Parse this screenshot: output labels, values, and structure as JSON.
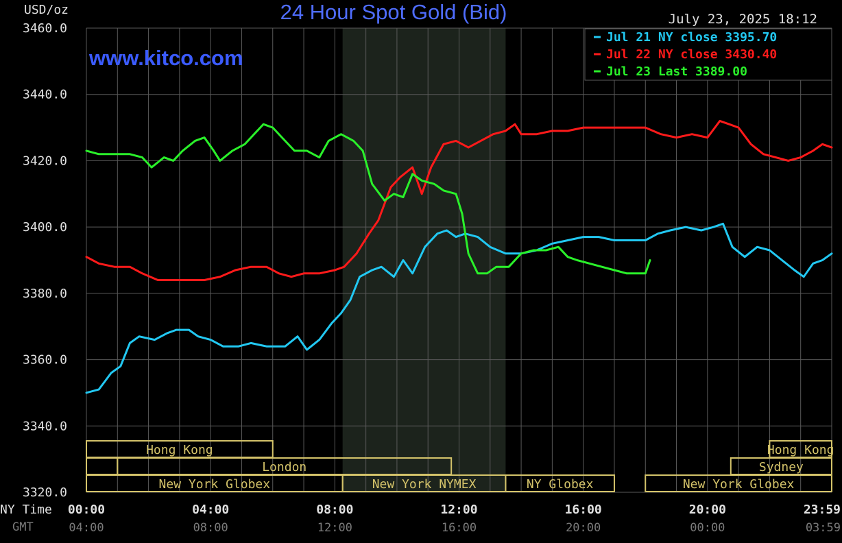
{
  "title": "24 Hour Spot Gold (Bid)",
  "unit_label": "USD/oz",
  "timestamp": "July 23, 2025 18:12",
  "watermark": "www.kitco.com",
  "axis_row_labels": {
    "ny": "NY Time",
    "gmt": "GMT"
  },
  "colors": {
    "background": "#000000",
    "grid": "#5a5a5a",
    "title": "#4f6dff",
    "shaded_band": "#1c231c",
    "session_box": "#d4c36a",
    "jul21": "#22c8f2",
    "jul22": "#ff1a1a",
    "jul23": "#2af02a",
    "axis_text": "#e0e0e0",
    "gmt_text": "#7a7a7a"
  },
  "legend": [
    {
      "text": "Jul 21 NY close 3395.70",
      "series": "jul21"
    },
    {
      "text": "Jul 22 NY close 3430.40",
      "series": "jul22"
    },
    {
      "text": "Jul 23 Last 3389.00",
      "series": "jul23"
    }
  ],
  "sessions": [
    {
      "label": "Hong Kong",
      "row": 0,
      "start": 0,
      "end": 6
    },
    {
      "label": "Hong Kong",
      "row": 0,
      "start": 22,
      "end": 24
    },
    {
      "label": "London",
      "row": 1,
      "start": 1,
      "end": 11.75
    },
    {
      "label": "Sydney",
      "row": 1,
      "start": 20.75,
      "end": 24
    },
    {
      "label": "",
      "row": 1,
      "start": 0,
      "end": 1
    },
    {
      "label": "New York Globex",
      "row": 2,
      "start": 0,
      "end": 8.25
    },
    {
      "label": "New York NYMEX",
      "row": 2,
      "start": 8.25,
      "end": 13.5
    },
    {
      "label": "NY Globex",
      "row": 2,
      "start": 13.5,
      "end": 17
    },
    {
      "label": "New York Globex",
      "row": 2,
      "start": 18,
      "end": 24
    }
  ],
  "chart_data": {
    "type": "line",
    "title": "24 Hour Spot Gold (Bid)",
    "ylabel": "USD/oz",
    "ylim": [
      3320,
      3460
    ],
    "yticks": [
      "3460.0",
      "3440.0",
      "3420.0",
      "3400.0",
      "3380.0",
      "3360.0",
      "3340.0",
      "3320.0"
    ],
    "yticks_values": [
      3460,
      3440,
      3420,
      3400,
      3380,
      3360,
      3340,
      3320
    ],
    "xlim_hours": [
      0,
      24
    ],
    "xticks_ny": [
      "00:00",
      "04:00",
      "08:00",
      "12:00",
      "16:00",
      "20:00",
      "23:59"
    ],
    "xticks_gmt": [
      "04:00",
      "08:00",
      "12:00",
      "16:00",
      "20:00",
      "00:00",
      "03:59"
    ],
    "xticks_hours": [
      0,
      4,
      8,
      12,
      16,
      20,
      24
    ],
    "grid": true,
    "legend_position": "top-right",
    "shaded_hours": [
      8.25,
      13.5
    ],
    "series": [
      {
        "name": "Jul 21 NY close 3395.70",
        "key": "jul21",
        "points": [
          [
            0,
            3350
          ],
          [
            0.4,
            3351
          ],
          [
            0.8,
            3356
          ],
          [
            1.1,
            3358
          ],
          [
            1.4,
            3365
          ],
          [
            1.7,
            3367
          ],
          [
            2.2,
            3366
          ],
          [
            2.6,
            3368
          ],
          [
            2.9,
            3369
          ],
          [
            3.3,
            3369
          ],
          [
            3.6,
            3367
          ],
          [
            4.0,
            3366
          ],
          [
            4.4,
            3364
          ],
          [
            4.9,
            3364
          ],
          [
            5.3,
            3365
          ],
          [
            5.8,
            3364
          ],
          [
            6.1,
            3364
          ],
          [
            6.4,
            3364
          ],
          [
            6.8,
            3367
          ],
          [
            7.1,
            3363
          ],
          [
            7.5,
            3366
          ],
          [
            7.9,
            3371
          ],
          [
            8.2,
            3374
          ],
          [
            8.5,
            3378
          ],
          [
            8.8,
            3385
          ],
          [
            9.2,
            3387
          ],
          [
            9.5,
            3388
          ],
          [
            9.9,
            3385
          ],
          [
            10.2,
            3390
          ],
          [
            10.5,
            3386
          ],
          [
            10.9,
            3394
          ],
          [
            11.3,
            3398
          ],
          [
            11.6,
            3399
          ],
          [
            11.9,
            3397
          ],
          [
            12.2,
            3398
          ],
          [
            12.6,
            3397
          ],
          [
            13.0,
            3394
          ],
          [
            13.5,
            3392
          ],
          [
            14.0,
            3392
          ],
          [
            14.5,
            3393
          ],
          [
            15.0,
            3395
          ],
          [
            15.5,
            3396
          ],
          [
            16.0,
            3397
          ],
          [
            16.5,
            3397
          ],
          [
            17.0,
            3396
          ],
          [
            17.5,
            3396
          ],
          [
            18.0,
            3396
          ],
          [
            18.4,
            3398
          ],
          [
            18.8,
            3399
          ],
          [
            19.3,
            3400
          ],
          [
            19.8,
            3399
          ],
          [
            20.2,
            3400
          ],
          [
            20.5,
            3401
          ],
          [
            20.8,
            3394
          ],
          [
            21.2,
            3391
          ],
          [
            21.6,
            3394
          ],
          [
            22.0,
            3393
          ],
          [
            22.4,
            3390
          ],
          [
            22.8,
            3387
          ],
          [
            23.1,
            3385
          ],
          [
            23.4,
            3389
          ],
          [
            23.7,
            3390
          ],
          [
            24.0,
            3392
          ]
        ]
      },
      {
        "name": "Jul 22 NY close 3430.40",
        "key": "jul22",
        "points": [
          [
            0,
            3391
          ],
          [
            0.4,
            3389
          ],
          [
            0.9,
            3388
          ],
          [
            1.4,
            3388
          ],
          [
            1.8,
            3386
          ],
          [
            2.3,
            3384
          ],
          [
            2.8,
            3384
          ],
          [
            3.3,
            3384
          ],
          [
            3.8,
            3384
          ],
          [
            4.3,
            3385
          ],
          [
            4.8,
            3387
          ],
          [
            5.3,
            3388
          ],
          [
            5.8,
            3388
          ],
          [
            6.2,
            3386
          ],
          [
            6.6,
            3385
          ],
          [
            7.0,
            3386
          ],
          [
            7.5,
            3386
          ],
          [
            8.0,
            3387
          ],
          [
            8.3,
            3388
          ],
          [
            8.7,
            3392
          ],
          [
            9.1,
            3398
          ],
          [
            9.4,
            3402
          ],
          [
            9.8,
            3412
          ],
          [
            10.1,
            3415
          ],
          [
            10.5,
            3418
          ],
          [
            10.8,
            3410
          ],
          [
            11.1,
            3418
          ],
          [
            11.5,
            3425
          ],
          [
            11.9,
            3426
          ],
          [
            12.3,
            3424
          ],
          [
            12.7,
            3426
          ],
          [
            13.1,
            3428
          ],
          [
            13.5,
            3429
          ],
          [
            13.8,
            3431
          ],
          [
            14.0,
            3428
          ],
          [
            14.5,
            3428
          ],
          [
            15.0,
            3429
          ],
          [
            15.5,
            3429
          ],
          [
            16.0,
            3430
          ],
          [
            16.5,
            3430
          ],
          [
            17.0,
            3430
          ],
          [
            17.5,
            3430
          ],
          [
            18.0,
            3430
          ],
          [
            18.5,
            3428
          ],
          [
            19.0,
            3427
          ],
          [
            19.5,
            3428
          ],
          [
            20.0,
            3427
          ],
          [
            20.4,
            3432
          ],
          [
            20.7,
            3431
          ],
          [
            21.0,
            3430
          ],
          [
            21.4,
            3425
          ],
          [
            21.8,
            3422
          ],
          [
            22.2,
            3421
          ],
          [
            22.6,
            3420
          ],
          [
            23.0,
            3421
          ],
          [
            23.4,
            3423
          ],
          [
            23.7,
            3425
          ],
          [
            24.0,
            3424
          ]
        ]
      },
      {
        "name": "Jul 23 Last 3389.00",
        "key": "jul23",
        "points": [
          [
            0,
            3423
          ],
          [
            0.4,
            3422
          ],
          [
            0.9,
            3422
          ],
          [
            1.4,
            3422
          ],
          [
            1.8,
            3421
          ],
          [
            2.1,
            3418
          ],
          [
            2.5,
            3421
          ],
          [
            2.8,
            3420
          ],
          [
            3.1,
            3423
          ],
          [
            3.5,
            3426
          ],
          [
            3.8,
            3427
          ],
          [
            4.1,
            3423
          ],
          [
            4.3,
            3420
          ],
          [
            4.7,
            3423
          ],
          [
            5.1,
            3425
          ],
          [
            5.4,
            3428
          ],
          [
            5.7,
            3431
          ],
          [
            6.0,
            3430
          ],
          [
            6.3,
            3427
          ],
          [
            6.7,
            3423
          ],
          [
            7.1,
            3423
          ],
          [
            7.5,
            3421
          ],
          [
            7.8,
            3426
          ],
          [
            8.2,
            3428
          ],
          [
            8.6,
            3426
          ],
          [
            8.9,
            3423
          ],
          [
            9.2,
            3413
          ],
          [
            9.6,
            3408
          ],
          [
            9.9,
            3410
          ],
          [
            10.2,
            3409
          ],
          [
            10.5,
            3416
          ],
          [
            10.8,
            3414
          ],
          [
            11.2,
            3413
          ],
          [
            11.5,
            3411
          ],
          [
            11.9,
            3410
          ],
          [
            12.1,
            3404
          ],
          [
            12.3,
            3392
          ],
          [
            12.6,
            3386
          ],
          [
            12.9,
            3386
          ],
          [
            13.2,
            3388
          ],
          [
            13.6,
            3388
          ],
          [
            14.0,
            3392
          ],
          [
            14.4,
            3393
          ],
          [
            14.8,
            3393
          ],
          [
            15.2,
            3394
          ],
          [
            15.5,
            3391
          ],
          [
            15.8,
            3390
          ],
          [
            16.2,
            3389
          ],
          [
            16.6,
            3388
          ],
          [
            17.0,
            3387
          ],
          [
            17.4,
            3386
          ],
          [
            17.8,
            3386
          ],
          [
            18.0,
            3386
          ],
          [
            18.15,
            3390
          ]
        ]
      }
    ]
  }
}
